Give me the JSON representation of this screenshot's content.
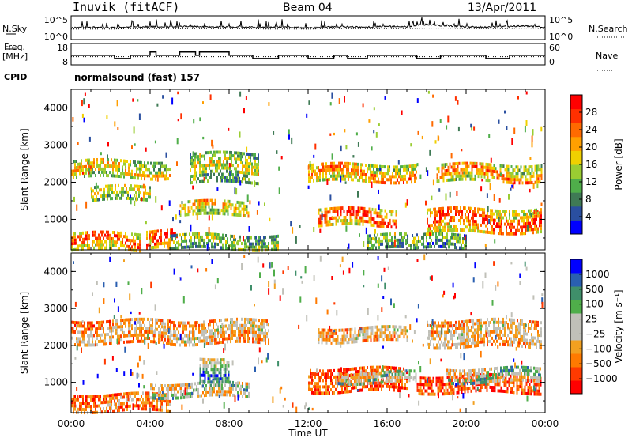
{
  "header": {
    "station": "Inuvik (fitACF)",
    "beam": "Beam 04",
    "date": "13/Apr/2011"
  },
  "strip_labels": {
    "nsky": "N.Sky",
    "nsearch": "N.Search",
    "freq": "Freq.",
    "freq_unit": "[MHz]",
    "nave": "Nave",
    "cpid": "CPID",
    "cpid_value": "normalsound (fast) 157"
  },
  "chart_data": [
    {
      "type": "line",
      "panel": "noise",
      "series": [
        {
          "name": "N.Sky"
        },
        {
          "name": "N.Search"
        }
      ],
      "y_left_ticks": [
        "10^5",
        "10^0"
      ],
      "y_right_ticks": [
        "10^5",
        "10^0"
      ],
      "x": [
        "00:00",
        "01:00",
        "02:00",
        "03:00",
        "04:00",
        "05:00",
        "06:00",
        "07:00",
        "08:00",
        "09:00",
        "10:00",
        "11:00",
        "12:00",
        "13:00",
        "14:00",
        "15:00",
        "16:00",
        "17:00",
        "18:00",
        "19:00",
        "20:00",
        "21:00",
        "22:00",
        "23:00",
        "00:00"
      ],
      "nsky_level": [
        2.5,
        2.6,
        2.5,
        2.6,
        2.7,
        2.6,
        2.8,
        2.6,
        2.7,
        2.6,
        2.5,
        2.6,
        2.4,
        2.6,
        2.7,
        2.6,
        2.8,
        2.7,
        3.2,
        2.9,
        2.7,
        2.6,
        2.7,
        2.9,
        2.6
      ],
      "nsearch_level": [
        2.2,
        2.2,
        2.2,
        2.3,
        2.3,
        2.3,
        2.3,
        2.3,
        2.3,
        2.3,
        2.2,
        2.2,
        2.2,
        2.3,
        2.3,
        2.3,
        2.3,
        2.3,
        2.4,
        2.4,
        2.3,
        2.3,
        2.3,
        2.4,
        2.3
      ],
      "ylim": [
        0,
        5
      ]
    },
    {
      "type": "line",
      "panel": "freq",
      "series": [
        {
          "name": "Freq."
        },
        {
          "name": "Nave"
        }
      ],
      "y_left_ticks": [
        "18",
        "8"
      ],
      "y_right_ticks": [
        "60",
        "0"
      ],
      "freq_steps": [
        [
          0,
          12.5
        ],
        [
          2.2,
          11.0
        ],
        [
          3.0,
          12.5
        ],
        [
          4.0,
          14.0
        ],
        [
          4.3,
          12.5
        ],
        [
          5.5,
          14.0
        ],
        [
          6.3,
          12.5
        ],
        [
          6.5,
          14.0
        ],
        [
          8.0,
          12.5
        ],
        [
          9.2,
          11.0
        ],
        [
          10.5,
          12.5
        ],
        [
          12.0,
          11.0
        ],
        [
          13.3,
          12.5
        ],
        [
          14.0,
          11.0
        ],
        [
          15.0,
          12.5
        ],
        [
          17.5,
          11.0
        ],
        [
          18.7,
          12.5
        ],
        [
          21.0,
          11.0
        ],
        [
          22.2,
          12.5
        ],
        [
          24.0,
          12.5
        ]
      ],
      "nave_level": 23,
      "ylim_left": [
        8,
        18
      ],
      "ylim_right": [
        0,
        60
      ]
    },
    {
      "type": "heatmap",
      "panel": "power",
      "ylabel": "Slant Range [km]",
      "yticks": [
        1000,
        2000,
        3000,
        4000
      ],
      "ylim": [
        180,
        4500
      ],
      "xlim_hours": [
        0,
        24
      ],
      "colorbar_label": "Power [dB]",
      "colorbar_ticks": [
        "28",
        "24",
        "20",
        "16",
        "12",
        "8",
        "4"
      ],
      "colors": [
        "#0000ff",
        "#2a4fa0",
        "#3f7a55",
        "#4fae4a",
        "#9acd32",
        "#f0d000",
        "#ff9f00",
        "#ff6a00",
        "#ff3000",
        "#ff0000"
      ],
      "bands": [
        {
          "t0": 0.0,
          "t1": 3.5,
          "r0": 200,
          "r1": 650,
          "v": 0.9
        },
        {
          "t0": 3.8,
          "t1": 5.4,
          "r0": 200,
          "r1": 700,
          "v": 1.0
        },
        {
          "t0": 0.0,
          "t1": 5.0,
          "r0": 2100,
          "r1": 2600,
          "v": 0.65
        },
        {
          "t0": 1.0,
          "t1": 4.0,
          "r0": 1500,
          "r1": 1900,
          "v": 0.6
        },
        {
          "t0": 5.5,
          "t1": 9.0,
          "r0": 1100,
          "r1": 1500,
          "v": 0.7
        },
        {
          "t0": 5.0,
          "t1": 10.5,
          "r0": 200,
          "r1": 600,
          "v": 0.5
        },
        {
          "t0": 6.0,
          "t1": 9.5,
          "r0": 2000,
          "r1": 2800,
          "v": 0.55
        },
        {
          "t0": 12.5,
          "t1": 16.5,
          "r0": 800,
          "r1": 1300,
          "v": 0.95
        },
        {
          "t0": 12.0,
          "t1": 17.5,
          "r0": 2000,
          "r1": 2500,
          "v": 0.8
        },
        {
          "t0": 15.0,
          "t1": 17.0,
          "r0": 200,
          "r1": 600,
          "v": 0.5
        },
        {
          "t0": 18.0,
          "t1": 23.8,
          "r0": 700,
          "r1": 1300,
          "v": 0.95
        },
        {
          "t0": 18.5,
          "t1": 23.8,
          "r0": 2000,
          "r1": 2500,
          "v": 0.8
        },
        {
          "t0": 17.0,
          "t1": 20.0,
          "r0": 200,
          "r1": 600,
          "v": 0.45
        }
      ]
    },
    {
      "type": "heatmap",
      "panel": "velocity",
      "ylabel": "Slant Range [km]",
      "xlabel": "Time UT",
      "xticks": [
        "00:00",
        "04:00",
        "08:00",
        "12:00",
        "16:00",
        "20:00",
        "00:00"
      ],
      "yticks": [
        1000,
        2000,
        3000,
        4000
      ],
      "ylim": [
        180,
        4500
      ],
      "xlim_hours": [
        0,
        24
      ],
      "colorbar_label": "Velocity [m s⁻¹]",
      "colorbar_ticks": [
        "1000",
        "500",
        "100",
        "25",
        "−25",
        "−100",
        "−500",
        "−1000"
      ],
      "colors": [
        "#ff0000",
        "#ff3a00",
        "#ff7a00",
        "#f2a020",
        "#c0c0b8",
        "#c0c0b8",
        "#4fae4a",
        "#3f8f6a",
        "#2a5fb0",
        "#0000ff"
      ],
      "bands": [
        {
          "t0": 0.0,
          "t1": 5.0,
          "r0": 200,
          "r1": 700,
          "v": 0.35
        },
        {
          "t0": 0.0,
          "t1": 5.0,
          "r0": 2100,
          "r1": 2700,
          "v": 0.45
        },
        {
          "t0": 4.0,
          "t1": 9.0,
          "r0": 600,
          "r1": 1000,
          "v": 0.7
        },
        {
          "t0": 6.5,
          "t1": 8.0,
          "r0": 1100,
          "r1": 1700,
          "v": 0.9
        },
        {
          "t0": 5.0,
          "t1": 10.0,
          "r0": 2100,
          "r1": 2700,
          "v": 0.5
        },
        {
          "t0": 12.0,
          "t1": 17.0,
          "r0": 800,
          "r1": 1400,
          "v": 0.25
        },
        {
          "t0": 13.5,
          "t1": 17.5,
          "r0": 1000,
          "r1": 1300,
          "v": 0.75
        },
        {
          "t0": 12.5,
          "t1": 17.0,
          "r0": 2100,
          "r1": 2500,
          "v": 0.5
        },
        {
          "t0": 17.5,
          "t1": 23.8,
          "r0": 700,
          "r1": 1200,
          "v": 0.2
        },
        {
          "t0": 19.0,
          "t1": 23.8,
          "r0": 1000,
          "r1": 1400,
          "v": 0.75
        },
        {
          "t0": 18.0,
          "t1": 23.8,
          "r0": 2000,
          "r1": 2700,
          "v": 0.5
        }
      ]
    }
  ]
}
